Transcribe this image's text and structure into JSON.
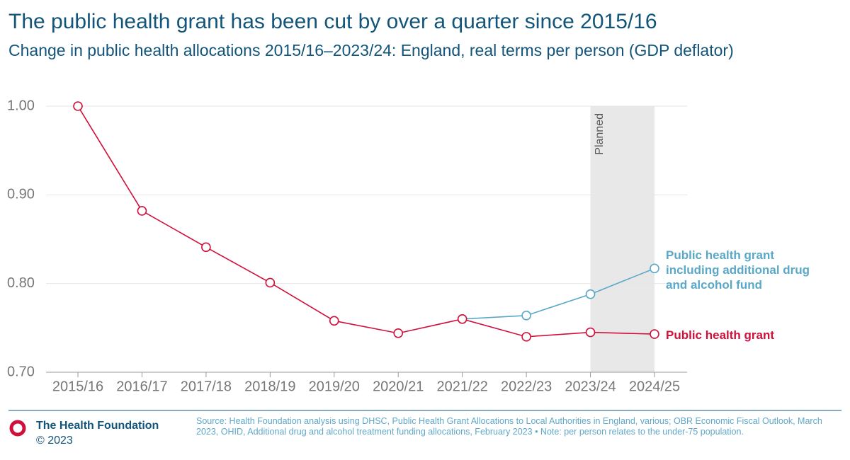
{
  "chart_data": {
    "type": "line",
    "title": "The public health grant has been cut by over a quarter since 2015/16",
    "subtitle": "Change in public health allocations 2015/16–2023/24: England, real terms per person (GDP deflator)",
    "categories": [
      "2015/16",
      "2016/17",
      "2017/18",
      "2018/19",
      "2019/20",
      "2020/21",
      "2021/22",
      "2022/23",
      "2023/24",
      "2024/25"
    ],
    "series": [
      {
        "name": "Public health grant including additional drug and alcohol fund",
        "color": "#5aa8c8",
        "values": [
          null,
          null,
          null,
          null,
          null,
          null,
          0.76,
          0.764,
          0.788,
          0.817
        ]
      },
      {
        "name": "Public health grant",
        "color": "#d0103a",
        "values": [
          1.0,
          0.882,
          0.841,
          0.801,
          0.758,
          0.744,
          0.76,
          0.74,
          0.745,
          0.743
        ]
      }
    ],
    "ylim": [
      0.7,
      1.0
    ],
    "yticks": [
      {
        "value": 0.7,
        "label": "0.70"
      },
      {
        "value": 0.8,
        "label": "0.80"
      },
      {
        "value": 0.9,
        "label": "0.90"
      },
      {
        "value": 1.0,
        "label": "1.00"
      }
    ],
    "grid": true,
    "shaded_region": {
      "start": "2023/24",
      "end": "2024/25",
      "label": "Planned"
    }
  },
  "footer": {
    "organisation": "The Health Foundation",
    "copyright": "© 2023",
    "source": "Source: Health Foundation analysis using DHSC, Public Health Grant Allocations to Local Authorities in England, various; OBR Economic Fiscal Outlook, March 2023, OHID, Additional drug and alcohol treatment funding allocations, February 2023 • Note: per person relates to the under-75 population."
  }
}
